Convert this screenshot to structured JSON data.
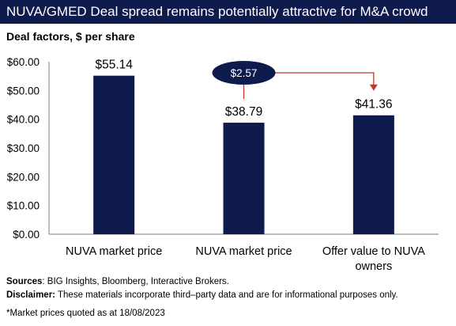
{
  "header": {
    "title": "NUVA/GMED Deal spread remains potentially attractive for M&A crowd",
    "subtitle": "Deal factors, $ per share"
  },
  "colors": {
    "title_bg": "#0f1a4d",
    "bar": "#0f1a4d",
    "callout_fill": "#0f1a4d",
    "arrow": "#c0392b"
  },
  "chart_data": {
    "type": "bar",
    "categories": [
      "NUVA market price",
      "NUVA market price",
      "Offer value to NUVA owners"
    ],
    "category_lines": [
      [
        "NUVA market price"
      ],
      [
        "NUVA market price"
      ],
      [
        "Offer value to NUVA",
        "owners"
      ]
    ],
    "values": [
      55.14,
      38.79,
      41.36
    ],
    "data_labels": [
      "$55.14",
      "$38.79",
      "$41.36"
    ],
    "yticks": [
      "$0.00",
      "$10.00",
      "$20.00",
      "$30.00",
      "$40.00",
      "$50.00",
      "$60.00"
    ],
    "ylim": [
      0,
      60
    ],
    "grid": false,
    "annotation": {
      "label": "$2.57",
      "from_category": 1,
      "to_category": 2
    }
  },
  "footer": {
    "sources_label": "Sources",
    "sources_text": ": BIG Insights, Bloomberg, Interactive Brokers.",
    "disclaimer_label": "Disclaimer:",
    "disclaimer_text": " These materials incorporate third–party data and are for informational purposes only.",
    "note": "*Market prices quoted as at 18/08/2023"
  }
}
